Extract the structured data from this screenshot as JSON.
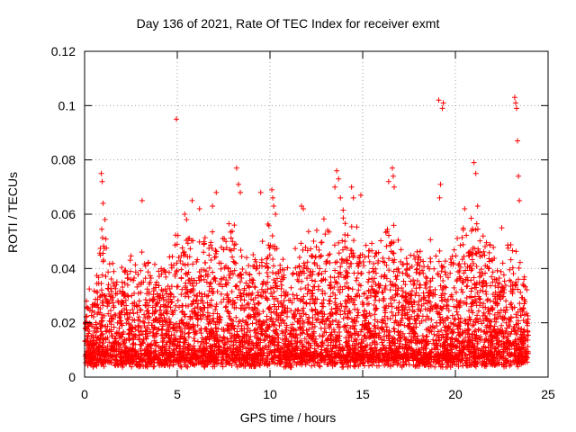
{
  "chart_data": {
    "type": "scatter",
    "title": "Day 136 of 2021, Rate Of TEC Index for receiver exmt",
    "xlabel": "GPS time / hours",
    "ylabel": "ROTI / TECUs",
    "xlim": [
      0,
      25
    ],
    "ylim": [
      0,
      0.12
    ],
    "xticks": [
      0,
      5,
      10,
      15,
      20,
      25
    ],
    "xtick_labels": [
      "0",
      "5",
      "10",
      "15",
      "20",
      "25"
    ],
    "yticks": [
      0,
      0.02,
      0.04,
      0.06,
      0.08,
      0.1,
      0.12
    ],
    "ytick_labels": [
      "0",
      "0.02",
      "0.04",
      "0.06",
      "0.08",
      "0.1",
      "0.12"
    ],
    "grid": true,
    "marker": "+",
    "color": "#ff0000",
    "series": [
      {
        "name": "ROTI",
        "envelope": {
          "x": [
            0,
            0.5,
            1,
            1.5,
            2,
            2.5,
            3,
            3.5,
            4,
            4.5,
            5,
            5.5,
            6,
            6.5,
            7,
            7.5,
            8,
            8.5,
            9,
            9.5,
            10,
            10.5,
            11,
            11.5,
            12,
            12.5,
            13,
            13.5,
            14,
            14.5,
            15,
            15.5,
            16,
            16.5,
            17,
            17.5,
            18,
            18.5,
            19,
            19.5,
            20,
            20.5,
            21,
            21.5,
            22,
            22.5,
            23,
            23.5,
            24
          ],
          "y": [
            0.025,
            0.03,
            0.055,
            0.04,
            0.035,
            0.045,
            0.04,
            0.042,
            0.045,
            0.04,
            0.05,
            0.05,
            0.045,
            0.048,
            0.05,
            0.048,
            0.055,
            0.045,
            0.042,
            0.045,
            0.055,
            0.04,
            0.038,
            0.045,
            0.05,
            0.052,
            0.05,
            0.045,
            0.055,
            0.05,
            0.048,
            0.045,
            0.05,
            0.055,
            0.05,
            0.04,
            0.045,
            0.042,
            0.05,
            0.04,
            0.045,
            0.05,
            0.055,
            0.048,
            0.045,
            0.042,
            0.05,
            0.04,
            0.03
          ],
          "floor": 0.006
        },
        "outliers": {
          "x": [
            0.1,
            0.9,
            0.95,
            1.0,
            1.1,
            3.1,
            4.95,
            5.4,
            5.5,
            5.8,
            6.2,
            6.9,
            7.1,
            8.2,
            8.3,
            8.4,
            9.5,
            10.1,
            10.15,
            10.2,
            10.3,
            11.7,
            11.8,
            13.5,
            13.6,
            13.7,
            13.8,
            14.4,
            14.5,
            14.9,
            16.4,
            16.6,
            16.65,
            16.7,
            19.1,
            19.15,
            19.2,
            19.3,
            19.35,
            20.5,
            21.0,
            21.1,
            21.2,
            22.5,
            23.2,
            23.25,
            23.3,
            23.35,
            23.4,
            23.45
          ],
          "y": [
            0.028,
            0.075,
            0.072,
            0.064,
            0.058,
            0.065,
            0.095,
            0.06,
            0.058,
            0.065,
            0.062,
            0.063,
            0.068,
            0.077,
            0.071,
            0.068,
            0.068,
            0.069,
            0.066,
            0.063,
            0.06,
            0.063,
            0.062,
            0.07,
            0.076,
            0.073,
            0.066,
            0.07,
            0.066,
            0.067,
            0.072,
            0.077,
            0.074,
            0.07,
            0.102,
            0.066,
            0.071,
            0.099,
            0.101,
            0.062,
            0.079,
            0.075,
            0.063,
            0.055,
            0.103,
            0.101,
            0.099,
            0.087,
            0.074,
            0.065
          ]
        }
      }
    ]
  }
}
